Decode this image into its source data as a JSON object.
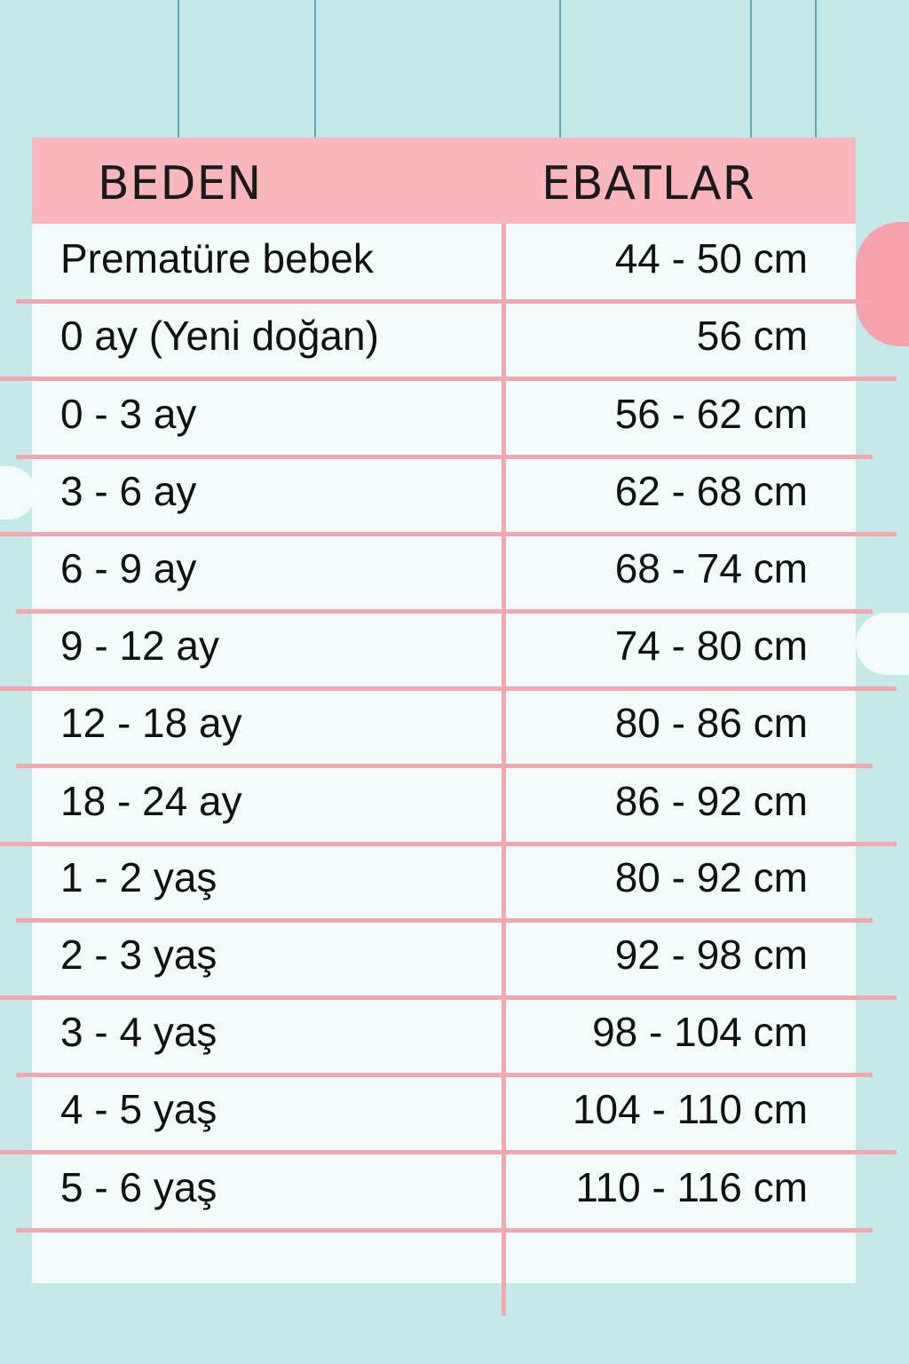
{
  "header": {
    "size_label": "BEDEN",
    "dimension_label": "EBATLAR"
  },
  "rows": [
    {
      "size": "Prematüre bebek",
      "dimension": "44 - 50 cm"
    },
    {
      "size": "0 ay (Yeni doğan)",
      "dimension": "56 cm"
    },
    {
      "size": "0 - 3 ay",
      "dimension": "56 - 62 cm"
    },
    {
      "size": "3 - 6 ay",
      "dimension": "62 - 68 cm"
    },
    {
      "size": "6 - 9 ay",
      "dimension": "68 - 74 cm"
    },
    {
      "size": "9 - 12 ay",
      "dimension": "74 - 80 cm"
    },
    {
      "size": "12 - 18 ay",
      "dimension": "80 - 86 cm"
    },
    {
      "size": "18 - 24 ay",
      "dimension": "86 - 92 cm"
    },
    {
      "size": "1 - 2 yaş",
      "dimension": "80 - 92 cm"
    },
    {
      "size": "2 - 3 yaş",
      "dimension": "92 - 98 cm"
    },
    {
      "size": "3 - 4 yaş",
      "dimension": "98 - 104 cm"
    },
    {
      "size": "4 - 5 yaş",
      "dimension": "104 - 110 cm"
    },
    {
      "size": "5 - 6 yaş",
      "dimension": "110 - 116 cm"
    }
  ],
  "colors": {
    "background": "#c5e9e8",
    "header": "#f9b6bc",
    "lines": "#f3a7b0"
  }
}
